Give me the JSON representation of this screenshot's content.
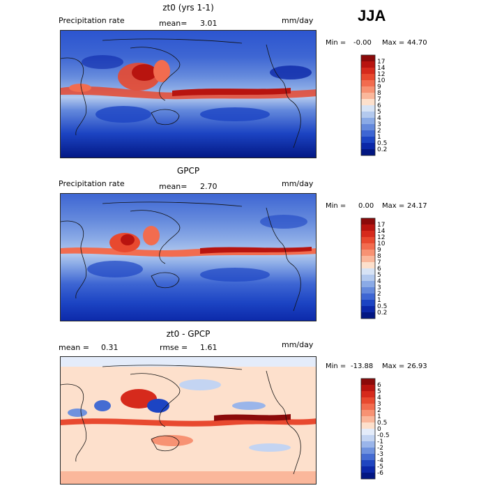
{
  "season": "JJA",
  "panels": [
    {
      "title": "zt0 (yrs 1-1)",
      "left_label": "Precipitation rate",
      "mean_label": "mean=",
      "mean_value": "3.01",
      "units": "mm/day",
      "min_label": "Min =",
      "min_value": "-0.00",
      "max_label": "Max =",
      "max_value": "44.70",
      "colorbar": {
        "labels": [
          "17",
          "14",
          "12",
          "10",
          "9",
          "8",
          "7",
          "6",
          "5",
          "4",
          "3",
          "2",
          "1",
          "0.5",
          "0.2"
        ],
        "colors": [
          "#8b0a0a",
          "#b8140f",
          "#d62a1c",
          "#e8492f",
          "#f26c4f",
          "#f79273",
          "#fab79b",
          "#fde0cc",
          "#d7e3f5",
          "#b3c9ee",
          "#8aaae6",
          "#6489dc",
          "#3e66d3",
          "#1c44c3",
          "#0b27a8",
          "#021682"
        ]
      }
    },
    {
      "title": "GPCP",
      "left_label": "Precipitation rate",
      "mean_label": "mean=",
      "mean_value": "2.70",
      "units": "mm/day",
      "min_label": "Min =",
      "min_value": "0.00",
      "max_label": "Max =",
      "max_value": "24.17",
      "colorbar": {
        "labels": [
          "17",
          "14",
          "12",
          "10",
          "9",
          "8",
          "7",
          "6",
          "5",
          "4",
          "3",
          "2",
          "1",
          "0.5",
          "0.2"
        ],
        "colors": [
          "#8b0a0a",
          "#b8140f",
          "#d62a1c",
          "#e8492f",
          "#f26c4f",
          "#f79273",
          "#fab79b",
          "#fde0cc",
          "#d7e3f5",
          "#b3c9ee",
          "#8aaae6",
          "#6489dc",
          "#3e66d3",
          "#1c44c3",
          "#0b27a8",
          "#021682"
        ]
      }
    },
    {
      "title": "zt0 - GPCP",
      "left_label": "mean =",
      "mean_label": "",
      "mean_value": "0.31",
      "rmse_label": "rmse =",
      "rmse_value": "1.61",
      "units": "mm/day",
      "min_label": "Min =",
      "min_value": "-13.88",
      "max_label": "Max =",
      "max_value": "26.93",
      "colorbar": {
        "labels": [
          "6",
          "5",
          "4",
          "3",
          "2",
          "1",
          "0.5",
          "0",
          "-0.5",
          "-1",
          "-2",
          "-3",
          "-4",
          "-5",
          "-6"
        ],
        "colors": [
          "#8b0a0a",
          "#b8140f",
          "#d62a1c",
          "#e8492f",
          "#f26c4f",
          "#f79273",
          "#fab79b",
          "#fde0cc",
          "#e4ecfa",
          "#c3d4f2",
          "#9ab5ea",
          "#6f92de",
          "#456cd2",
          "#1f45c0",
          "#0b27a8",
          "#021682"
        ]
      }
    }
  ]
}
